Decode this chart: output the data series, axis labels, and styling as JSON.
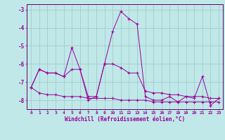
{
  "xlabel": "Windchill (Refroidissement éolien,°C)",
  "x": [
    0,
    1,
    2,
    3,
    4,
    5,
    6,
    7,
    8,
    9,
    10,
    11,
    12,
    13,
    14,
    15,
    16,
    17,
    18,
    19,
    20,
    21,
    22,
    23
  ],
  "line1": [
    -7.3,
    -6.3,
    -6.5,
    -6.5,
    -6.7,
    -5.1,
    -6.3,
    -8.0,
    -7.8,
    -6.0,
    -4.2,
    -3.1,
    -3.5,
    -3.8,
    -7.8,
    -8.0,
    -8.0,
    -7.8,
    -8.1,
    -7.8,
    -7.9,
    -6.7,
    -8.3,
    -7.9
  ],
  "line2": [
    -7.3,
    -7.6,
    -7.7,
    -7.7,
    -7.8,
    -7.8,
    -7.8,
    -7.9,
    -7.9,
    -7.9,
    -7.9,
    -8.0,
    -8.0,
    -8.0,
    -8.0,
    -8.1,
    -8.1,
    -8.1,
    -8.1,
    -8.1,
    -8.1,
    -8.1,
    -8.1,
    -8.1
  ],
  "line3": [
    -7.3,
    -6.3,
    -6.5,
    -6.5,
    -6.7,
    -6.3,
    -6.3,
    -7.8,
    -7.8,
    -6.0,
    -6.0,
    -6.2,
    -6.5,
    -6.5,
    -7.5,
    -7.6,
    -7.6,
    -7.7,
    -7.7,
    -7.8,
    -7.8,
    -7.8,
    -7.9,
    -7.9
  ],
  "ylim": [
    -8.5,
    -2.7
  ],
  "yticks": [
    -8,
    -7,
    -6,
    -5,
    -4,
    -3
  ],
  "bg_color": "#c0e8e8",
  "grid_color": "#9cc8c8",
  "line_color": "#990099",
  "axis_color": "#660066",
  "figsize": [
    3.2,
    2.0
  ],
  "dpi": 100
}
